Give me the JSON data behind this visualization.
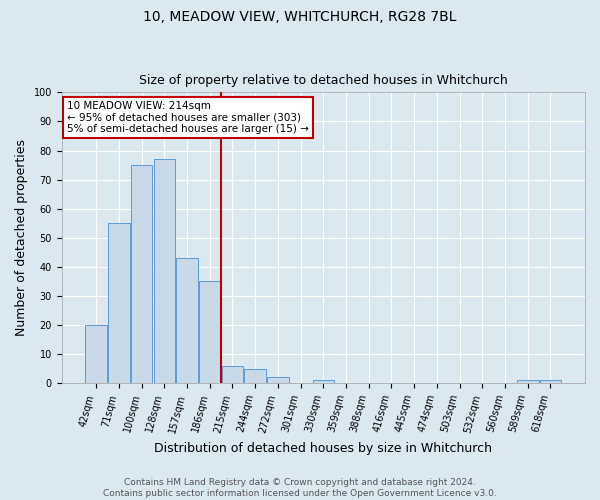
{
  "title": "10, MEADOW VIEW, WHITCHURCH, RG28 7BL",
  "subtitle": "Size of property relative to detached houses in Whitchurch",
  "xlabel": "Distribution of detached houses by size in Whitchurch",
  "ylabel": "Number of detached properties",
  "footnote": "Contains HM Land Registry data © Crown copyright and database right 2024.\nContains public sector information licensed under the Open Government Licence v3.0.",
  "bin_labels": [
    "42sqm",
    "71sqm",
    "100sqm",
    "128sqm",
    "157sqm",
    "186sqm",
    "215sqm",
    "244sqm",
    "272sqm",
    "301sqm",
    "330sqm",
    "359sqm",
    "388sqm",
    "416sqm",
    "445sqm",
    "474sqm",
    "503sqm",
    "532sqm",
    "560sqm",
    "589sqm",
    "618sqm"
  ],
  "bar_values": [
    20,
    55,
    75,
    77,
    43,
    35,
    6,
    5,
    2,
    0,
    1,
    0,
    0,
    0,
    0,
    0,
    0,
    0,
    0,
    1,
    1
  ],
  "bar_color": "#c9d9e8",
  "bar_edge_color": "#5b9bd5",
  "vline_x_index": 6,
  "vline_color": "#c00000",
  "annotation_text": "10 MEADOW VIEW: 214sqm\n← 95% of detached houses are smaller (303)\n5% of semi-detached houses are larger (15) →",
  "annotation_box_color": "#c00000",
  "ylim": [
    0,
    100
  ],
  "yticks": [
    0,
    10,
    20,
    30,
    40,
    50,
    60,
    70,
    80,
    90,
    100
  ],
  "background_color": "#dce8f0",
  "grid_color": "#ffffff",
  "title_fontsize": 10,
  "subtitle_fontsize": 9,
  "ylabel_fontsize": 9,
  "xlabel_fontsize": 9,
  "tick_fontsize": 7,
  "footnote_fontsize": 6.5,
  "annotation_fontsize": 7.5
}
